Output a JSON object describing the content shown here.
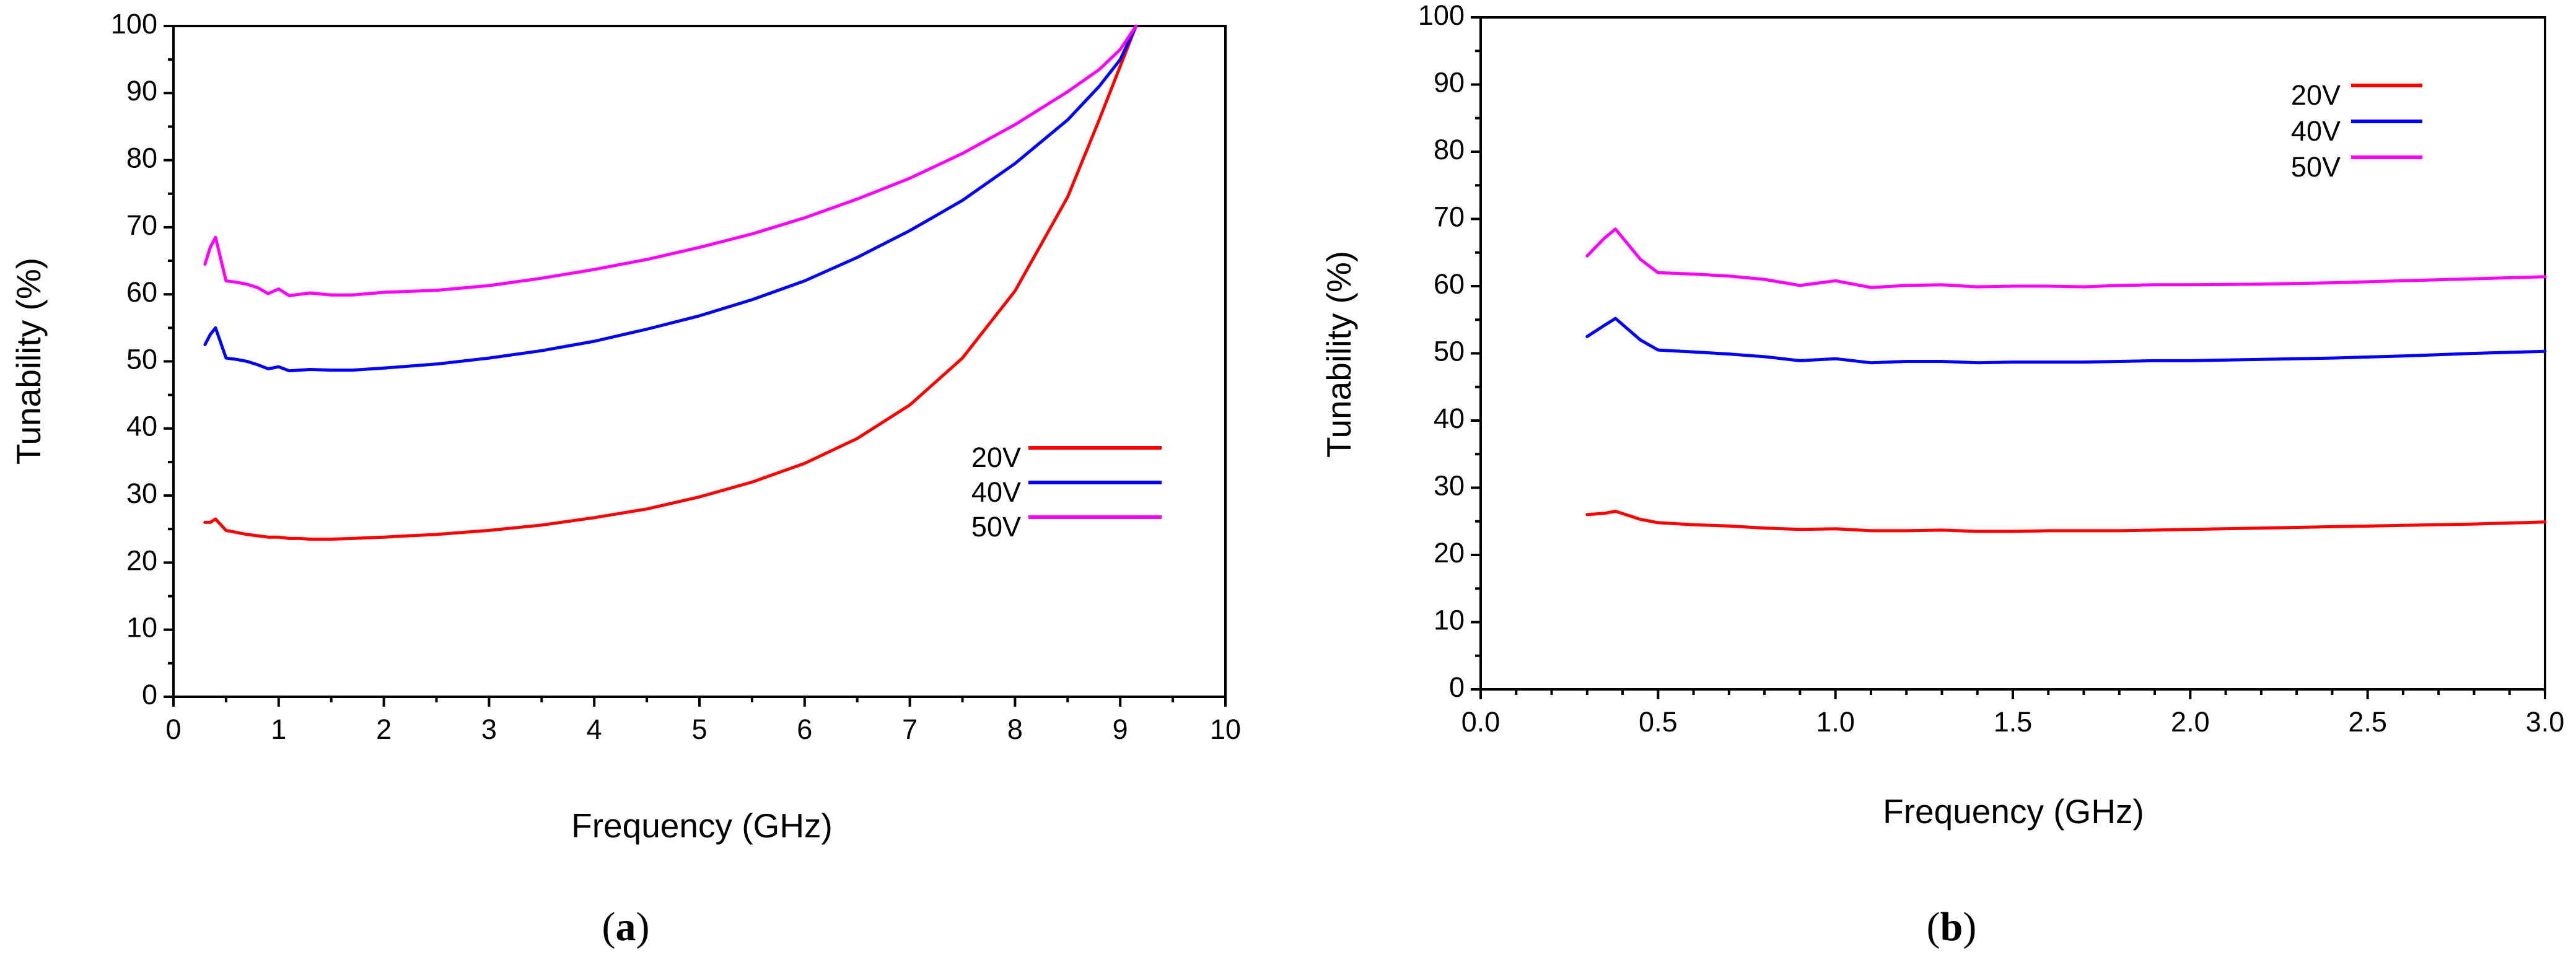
{
  "chart_data": [
    {
      "type": "line",
      "panel_label": "a",
      "xlabel": "Frequency (GHz)",
      "ylabel": "Tunability (%)",
      "xlim": [
        0,
        10
      ],
      "ylim": [
        0,
        100
      ],
      "x_major_ticks": [
        0,
        1,
        2,
        3,
        4,
        5,
        6,
        7,
        8,
        9,
        10
      ],
      "x_tick_labels": [
        "0",
        "1",
        "2",
        "3",
        "4",
        "5",
        "6",
        "7",
        "8",
        "9",
        "10"
      ],
      "x_minor_step": 0.5,
      "y_major_ticks": [
        0,
        10,
        20,
        30,
        40,
        50,
        60,
        70,
        80,
        90,
        100
      ],
      "y_tick_labels": [
        "0",
        "10",
        "20",
        "30",
        "40",
        "50",
        "60",
        "70",
        "80",
        "90",
        "100"
      ],
      "y_minor_step": 5,
      "grid": false,
      "legend_position": "middle-right",
      "series": [
        {
          "name": "20V",
          "color": "#ff0000",
          "x": [
            0.3,
            0.35,
            0.4,
            0.5,
            0.6,
            0.7,
            0.8,
            0.9,
            1.0,
            1.1,
            1.2,
            1.3,
            1.5,
            1.7,
            2.0,
            2.5,
            3.0,
            3.5,
            4.0,
            4.5,
            5.0,
            5.5,
            6.0,
            6.5,
            7.0,
            7.5,
            8.0,
            8.5,
            8.8,
            9.0,
            9.15
          ],
          "values": [
            26,
            26,
            26.5,
            24.8,
            24.5,
            24.2,
            24,
            23.8,
            23.8,
            23.6,
            23.6,
            23.5,
            23.5,
            23.6,
            23.8,
            24.2,
            24.8,
            25.6,
            26.7,
            28,
            29.8,
            32,
            34.8,
            38.5,
            43.5,
            50.5,
            60.5,
            74.5,
            86,
            94,
            100
          ]
        },
        {
          "name": "40V",
          "color": "#0000ff",
          "x": [
            0.3,
            0.35,
            0.4,
            0.5,
            0.6,
            0.7,
            0.8,
            0.9,
            1.0,
            1.1,
            1.2,
            1.3,
            1.5,
            1.7,
            2.0,
            2.5,
            3.0,
            3.5,
            4.0,
            4.5,
            5.0,
            5.5,
            6.0,
            6.5,
            7.0,
            7.5,
            8.0,
            8.5,
            8.8,
            9.0,
            9.15
          ],
          "values": [
            52.5,
            54,
            55,
            50.5,
            50.3,
            50,
            49.5,
            48.9,
            49.2,
            48.6,
            48.7,
            48.8,
            48.7,
            48.7,
            49,
            49.6,
            50.5,
            51.6,
            53,
            54.8,
            56.8,
            59.2,
            62,
            65.5,
            69.5,
            74,
            79.5,
            86,
            91,
            95,
            100
          ]
        },
        {
          "name": "50V",
          "color": "#ff00ff",
          "x": [
            0.3,
            0.35,
            0.4,
            0.5,
            0.6,
            0.7,
            0.8,
            0.9,
            1.0,
            1.1,
            1.2,
            1.3,
            1.5,
            1.7,
            2.0,
            2.5,
            3.0,
            3.5,
            4.0,
            4.5,
            5.0,
            5.5,
            6.0,
            6.5,
            7.0,
            7.5,
            8.0,
            8.5,
            8.8,
            9.0,
            9.15
          ],
          "values": [
            64.5,
            67,
            68.5,
            62,
            61.8,
            61.5,
            61,
            60.1,
            60.8,
            59.8,
            60,
            60.2,
            59.9,
            59.9,
            60.3,
            60.6,
            61.3,
            62.4,
            63.7,
            65.2,
            67,
            69,
            71.4,
            74.2,
            77.3,
            81,
            85.3,
            90.2,
            93.5,
            96.5,
            100
          ]
        }
      ]
    },
    {
      "type": "line",
      "panel_label": "b",
      "xlabel": "Frequency (GHz)",
      "ylabel": "Tunability (%)",
      "xlim": [
        0,
        3
      ],
      "ylim": [
        0,
        100
      ],
      "x_major_ticks": [
        0,
        0.5,
        1,
        1.5,
        2,
        2.5,
        3
      ],
      "x_tick_labels": [
        "0.0",
        "0.5",
        "1.0",
        "1.5",
        "2.0",
        "2.5",
        "3.0"
      ],
      "x_minor_step": 0.1,
      "y_major_ticks": [
        0,
        10,
        20,
        30,
        40,
        50,
        60,
        70,
        80,
        90,
        100
      ],
      "y_tick_labels": [
        "0",
        "10",
        "20",
        "30",
        "40",
        "50",
        "60",
        "70",
        "80",
        "90",
        "100"
      ],
      "y_minor_step": 5,
      "grid": false,
      "legend_position": "top-center",
      "series": [
        {
          "name": "20V",
          "color": "#ff0000",
          "x": [
            0.3,
            0.35,
            0.38,
            0.45,
            0.5,
            0.6,
            0.7,
            0.8,
            0.9,
            1.0,
            1.1,
            1.2,
            1.3,
            1.4,
            1.5,
            1.6,
            1.7,
            1.8,
            1.9,
            2.0,
            2.2,
            2.4,
            2.6,
            2.8,
            3.0
          ],
          "values": [
            26,
            26.2,
            26.5,
            25.3,
            24.8,
            24.5,
            24.3,
            24,
            23.8,
            23.9,
            23.6,
            23.6,
            23.7,
            23.5,
            23.5,
            23.6,
            23.6,
            23.6,
            23.7,
            23.8,
            24,
            24.2,
            24.4,
            24.6,
            24.9
          ]
        },
        {
          "name": "40V",
          "color": "#0000ff",
          "x": [
            0.3,
            0.35,
            0.38,
            0.45,
            0.5,
            0.6,
            0.7,
            0.8,
            0.9,
            1.0,
            1.1,
            1.2,
            1.3,
            1.4,
            1.5,
            1.6,
            1.7,
            1.8,
            1.9,
            2.0,
            2.2,
            2.4,
            2.6,
            2.8,
            3.0
          ],
          "values": [
            52.5,
            54.2,
            55.2,
            52,
            50.5,
            50.2,
            49.9,
            49.5,
            48.9,
            49.2,
            48.6,
            48.8,
            48.8,
            48.6,
            48.7,
            48.7,
            48.7,
            48.8,
            48.9,
            48.9,
            49.1,
            49.3,
            49.6,
            50,
            50.3
          ]
        },
        {
          "name": "50V",
          "color": "#ff00ff",
          "x": [
            0.3,
            0.35,
            0.38,
            0.45,
            0.5,
            0.6,
            0.7,
            0.8,
            0.9,
            1.0,
            1.1,
            1.2,
            1.3,
            1.4,
            1.5,
            1.6,
            1.7,
            1.8,
            1.9,
            2.0,
            2.2,
            2.4,
            2.6,
            2.8,
            3.0
          ],
          "values": [
            64.5,
            67.2,
            68.5,
            64,
            62,
            61.8,
            61.5,
            61,
            60.1,
            60.8,
            59.8,
            60.1,
            60.2,
            59.9,
            60,
            60,
            59.9,
            60.1,
            60.2,
            60.2,
            60.3,
            60.5,
            60.8,
            61.1,
            61.4
          ]
        }
      ]
    }
  ]
}
